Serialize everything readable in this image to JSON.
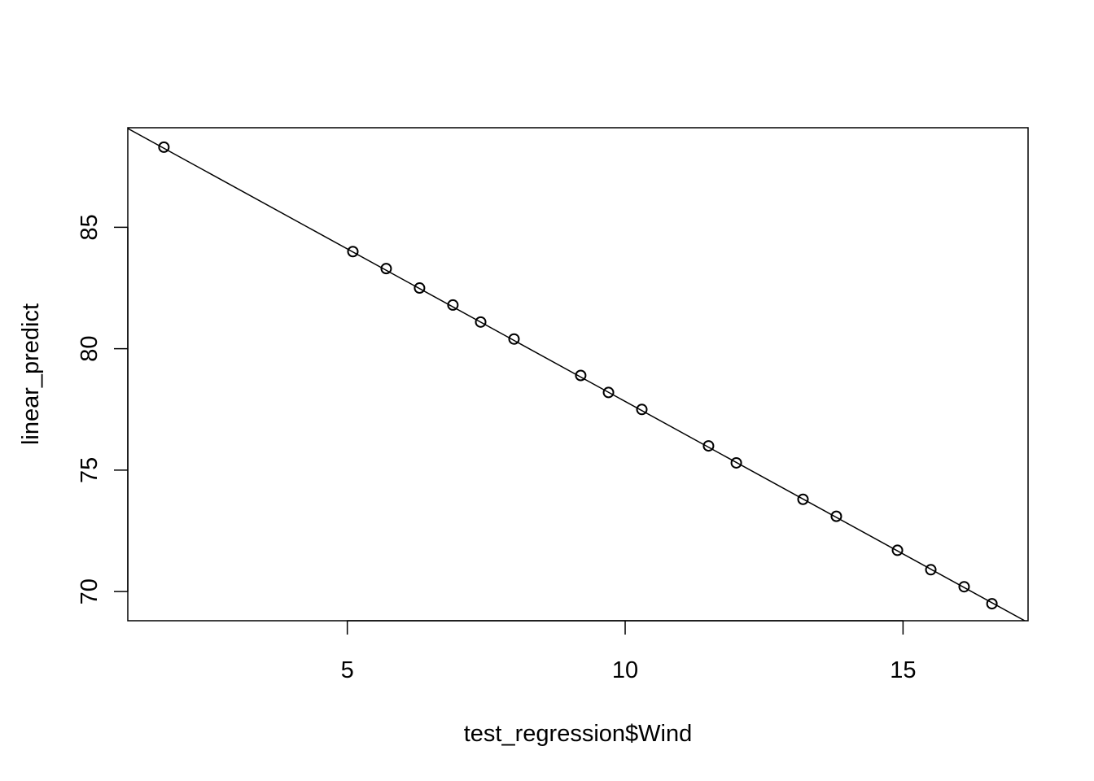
{
  "chart_data": {
    "type": "scatter",
    "title": "",
    "xlabel": "test_regression$Wind",
    "ylabel": "linear_predict",
    "xlim": [
      1.05,
      17.25
    ],
    "ylim": [
      68.8,
      89.1
    ],
    "x_ticks": [
      5,
      10,
      15
    ],
    "y_ticks": [
      70,
      75,
      80,
      85
    ],
    "grid": false,
    "legend": "none",
    "point_style": "open-circle",
    "series": [
      {
        "x": [
          1.7,
          5.1,
          5.7,
          6.3,
          6.9,
          7.4,
          8.0,
          9.2,
          9.7,
          10.3,
          11.5,
          12.0,
          13.2,
          13.8,
          14.9,
          15.5,
          16.1,
          16.6
        ],
        "y": [
          88.3,
          84.0,
          83.3,
          82.5,
          81.8,
          81.1,
          80.4,
          78.9,
          78.2,
          77.5,
          76.0,
          75.3,
          73.8,
          73.1,
          71.7,
          70.9,
          70.2,
          69.5
        ]
      }
    ],
    "regression_line": {
      "intercept": 90.39,
      "slope": -1.256
    },
    "colors": {
      "points": "#000000",
      "line": "#000000",
      "axes": "#000000"
    }
  }
}
